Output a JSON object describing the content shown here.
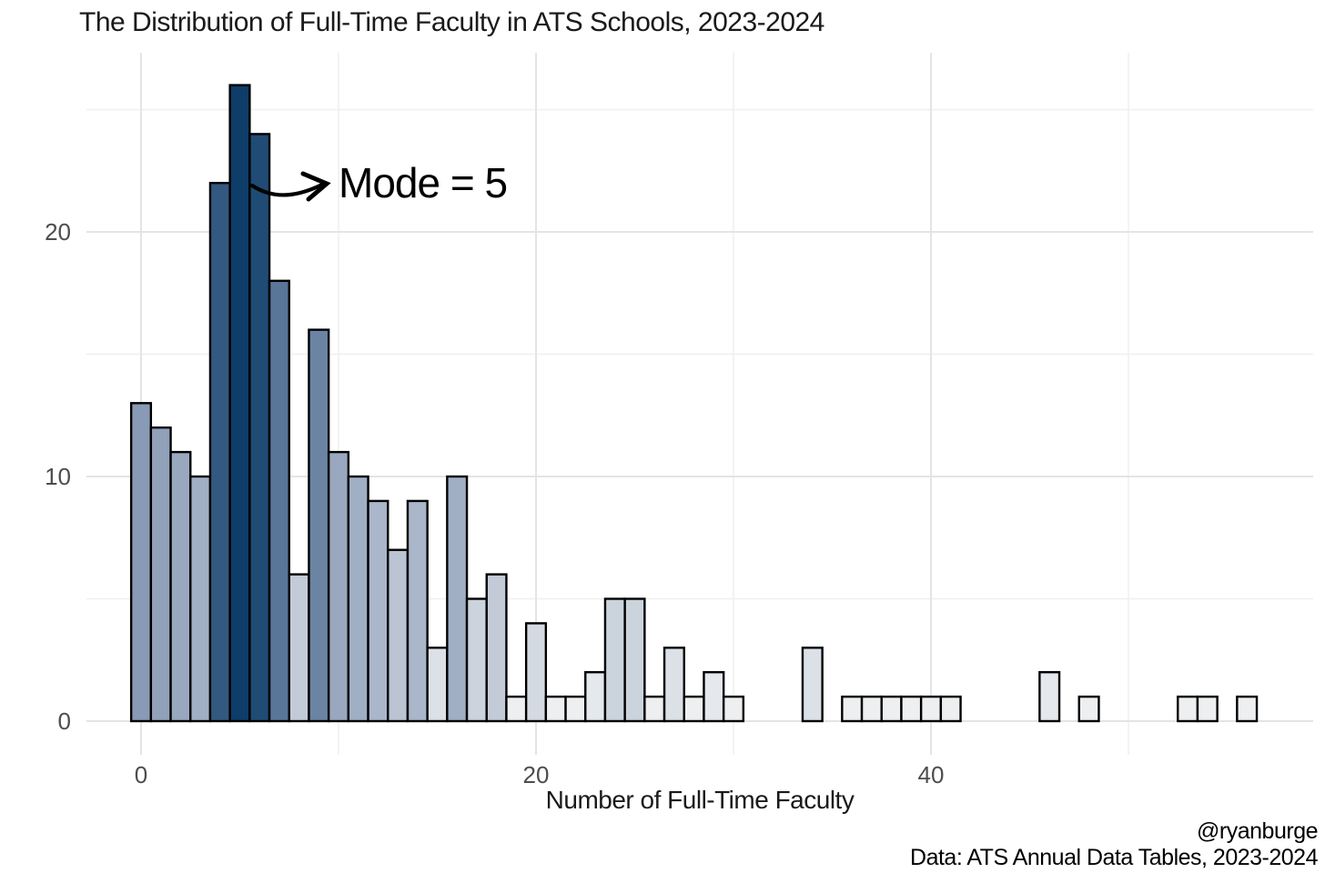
{
  "header": {
    "title": "The Distribution of Full-Time Faculty in ATS Schools, 2023-2024"
  },
  "footer": {
    "handle": "@ryanburge",
    "source": "Data: ATS Annual Data Tables, 2023-2024"
  },
  "chart_data": {
    "type": "bar",
    "subtype": "histogram",
    "title": "The Distribution of Full-Time Faculty in ATS Schools, 2023-2024",
    "xlabel": "Number of Full-Time Faculty",
    "ylabel": "",
    "bin_width": 1,
    "x": [
      0,
      1,
      2,
      3,
      4,
      5,
      6,
      7,
      8,
      9,
      10,
      11,
      12,
      13,
      14,
      15,
      16,
      17,
      18,
      19,
      20,
      21,
      22,
      23,
      24,
      25,
      26,
      27,
      28,
      29,
      30,
      34,
      36,
      37,
      38,
      39,
      40,
      41,
      46,
      48,
      53,
      54,
      56
    ],
    "counts": [
      13,
      12,
      11,
      10,
      22,
      26,
      24,
      18,
      6,
      16,
      11,
      10,
      9,
      7,
      9,
      3,
      10,
      5,
      6,
      1,
      4,
      1,
      1,
      2,
      5,
      5,
      1,
      3,
      1,
      2,
      1,
      3,
      1,
      1,
      1,
      1,
      1,
      1,
      2,
      1,
      1,
      1,
      1
    ],
    "mode": 5,
    "max_count": 26,
    "xlim": [
      -3,
      59.5
    ],
    "ylim": [
      -1.4,
      27.3
    ],
    "x_ticks": [
      0,
      20,
      40
    ],
    "x_minor_gridlines": [
      10,
      30,
      50
    ],
    "y_ticks": [
      0,
      10,
      20
    ],
    "y_minor_gridlines": [
      5,
      15,
      25
    ],
    "grid": "on",
    "legend": "none",
    "annotation": {
      "text": "Mode = 5",
      "target_x": 5
    },
    "colors": {
      "background": "#ffffff",
      "bar_outline": "#000000",
      "gradient_low": "#edeff1",
      "gradient_mid": "#8496b3",
      "gradient_high": "#0d3d68",
      "gridline_major": "#e3e4e6",
      "gridline_minor": "#eff0f1",
      "tick_label": "#4d4d4d",
      "text": "#1a1a1a",
      "annotation_arrow": "#000000"
    }
  }
}
